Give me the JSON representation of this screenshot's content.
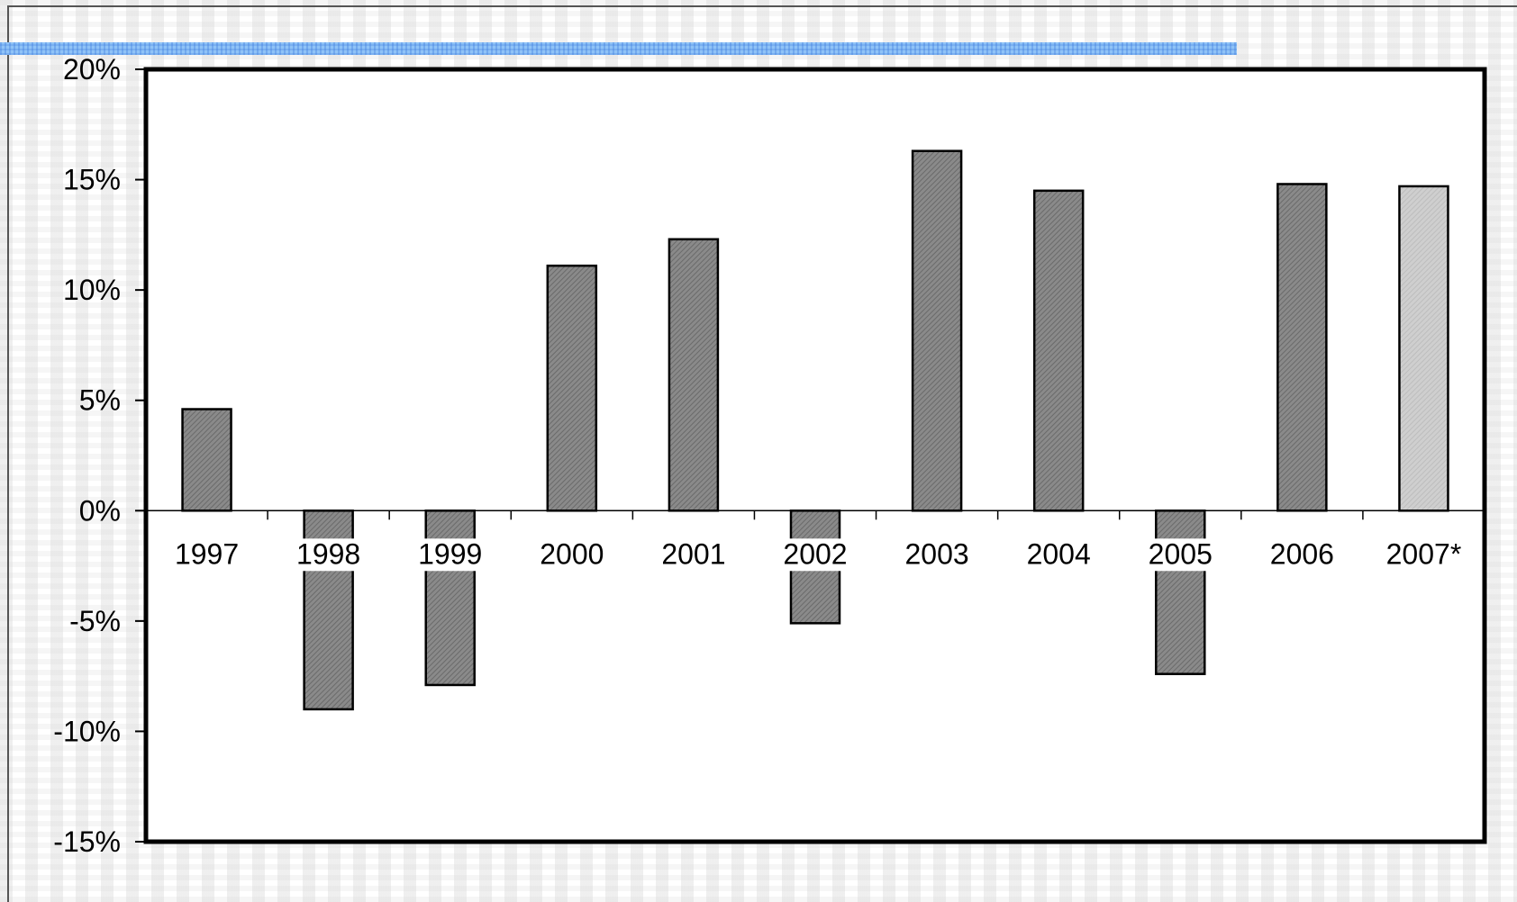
{
  "theme": {
    "accent_bar_color": "#8fc3f7",
    "bar_fill": "#8a8a8a",
    "highlight_bar_fill": "#cfcfcf",
    "axis_color": "#000000"
  },
  "chart_data": {
    "type": "bar",
    "categories": [
      "1997",
      "1998",
      "1999",
      "2000",
      "2001",
      "2002",
      "2003",
      "2004",
      "2005",
      "2006",
      "2007*"
    ],
    "values": [
      4.6,
      -9.0,
      -7.9,
      11.1,
      12.3,
      -5.1,
      16.3,
      14.5,
      -7.4,
      14.8,
      14.7
    ],
    "highlighted_categories": [
      "2007*"
    ],
    "ylim": [
      -15,
      20
    ],
    "yticks": [
      20,
      15,
      10,
      5,
      0,
      -5,
      -10,
      -15
    ],
    "ytick_labels": [
      "20%",
      "15%",
      "10%",
      "5%",
      "0%",
      "-5%",
      "-10%",
      "-15%"
    ],
    "title": "",
    "xlabel": "",
    "ylabel": "",
    "grid": false,
    "legend": "none"
  }
}
